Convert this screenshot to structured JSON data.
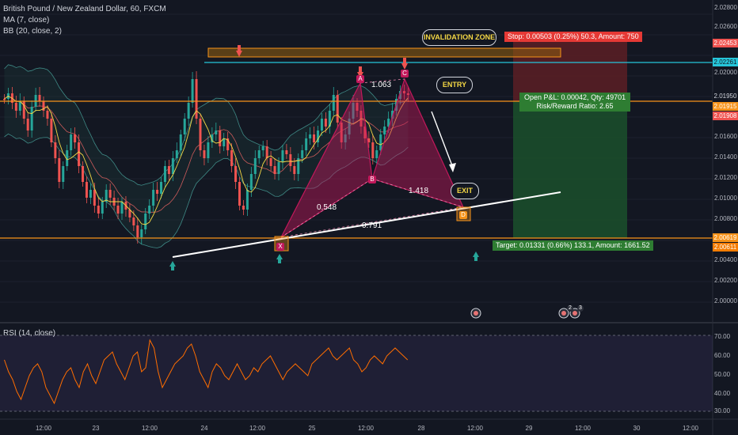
{
  "legend": {
    "title": "British Pound / New Zealand Dollar, 60, FXCM",
    "ma": "MA (7, close)",
    "bb": "BB (20, close, 2)",
    "rsi": "RSI (14, close)"
  },
  "price_axis": [
    "2.02800",
    "2.02600",
    "2.02400",
    "2.02200",
    "2.02000",
    "2.01800",
    "2.01600",
    "2.01400",
    "2.01200",
    "2.01000",
    "2.00800",
    "2.00600",
    "2.00400",
    "2.00200",
    "2.00000"
  ],
  "price_tags": {
    "stop": "2.02453",
    "cyan": "2.02261",
    "current": "2.01950",
    "entry": "2.01915",
    "red": "2.01908",
    "target": "2.00619",
    "low": "2.00611"
  },
  "rsi_axis": [
    "70.00",
    "60.00",
    "50.00",
    "40.00",
    "30.00"
  ],
  "time_axis": [
    "12:00",
    "23",
    "12:00",
    "24",
    "12:00",
    "25",
    "12:00",
    "28",
    "12:00",
    "29",
    "12:00",
    "30",
    "12:00"
  ],
  "position": {
    "stop_text": "Stop: 0.00503 (0.25%) 50.3, Amount: 750",
    "open_pl": "Open P&L: 0.00042, Qty: 49701",
    "rr": "Risk/Reward Ratio: 2.65",
    "target_text": "Target: 0.01331 (0.66%) 133.1, Amount: 1661.52"
  },
  "callouts": {
    "invalidation": "INVALIDATION ZONE",
    "entry": "ENTRY",
    "exit": "EXIT"
  },
  "pattern": {
    "points": [
      "X",
      "A",
      "B",
      "C",
      "D"
    ],
    "ratios": {
      "xa_ab": "0.548",
      "ab_bc": "1.063",
      "bc_cd": "1.418",
      "xd": "0.791"
    }
  },
  "event_badges": [
    "2",
    "3"
  ],
  "colors": {
    "background": "#131722",
    "bull": "#26a69a",
    "bear": "#ef5350",
    "harmonic": "#c2185b",
    "support": "#f7931a",
    "cyan_line": "#26c6da",
    "rsi": "#ff6d00"
  }
}
